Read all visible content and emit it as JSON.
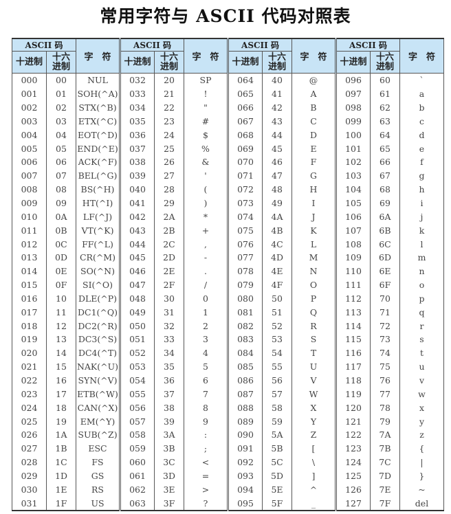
{
  "title": "常用字符与 ASCII 代码对照表",
  "header": {
    "group_label": "ASCII 码",
    "decimal_label": "十进制",
    "hex_label": "十六进制",
    "char_label": "字　符"
  },
  "header_color": "#c8e4f6",
  "groups": [
    {
      "start": 0,
      "chars": [
        "NUL",
        "SOH(^A)",
        "STX(^B)",
        "ETX(^C)",
        "EOT(^D)",
        "END(^E)",
        "ACK(^F)",
        "BEL(^G)",
        "BS(^H)",
        "HT(^I)",
        "LF(^J)",
        "VT(^K)",
        "FF(^L)",
        "CR(^M)",
        "SO(^N)",
        "SI(^O)",
        "DLE(^P)",
        "DC1(^Q)",
        "DC2(^R)",
        "DC3(^S)",
        "DC4(^T)",
        "NAK(^U)",
        "SYN(^V)",
        "ETB(^W)",
        "CAN(^X)",
        "EM(^Y)",
        "SUB(^Z)",
        "ESC",
        "FS",
        "GS",
        "RS",
        "US"
      ]
    },
    {
      "start": 32,
      "chars": [
        "SP",
        "!",
        "\"",
        "#",
        "$",
        "%",
        "&",
        "'",
        "(",
        ")",
        "*",
        "+",
        ",",
        "-",
        ".",
        "/",
        "0",
        "1",
        "2",
        "3",
        "4",
        "5",
        "6",
        "7",
        "8",
        "9",
        ":",
        ";",
        "<",
        "=",
        ">",
        "?"
      ]
    },
    {
      "start": 64,
      "chars": [
        "@",
        "A",
        "B",
        "C",
        "D",
        "E",
        "F",
        "G",
        "H",
        "I",
        "J",
        "K",
        "L",
        "M",
        "N",
        "O",
        "P",
        "Q",
        "R",
        "S",
        "T",
        "U",
        "V",
        "W",
        "X",
        "Y",
        "Z",
        "[",
        "\\",
        "]",
        "^",
        "_"
      ]
    },
    {
      "start": 96,
      "chars": [
        "`",
        "a",
        "b",
        "c",
        "d",
        "e",
        "f",
        "g",
        "h",
        "i",
        "j",
        "k",
        "l",
        "m",
        "n",
        "o",
        "p",
        "q",
        "r",
        "s",
        "t",
        "u",
        "v",
        "w",
        "x",
        "y",
        "z",
        "{",
        "|",
        "}",
        "~",
        "del"
      ]
    }
  ]
}
